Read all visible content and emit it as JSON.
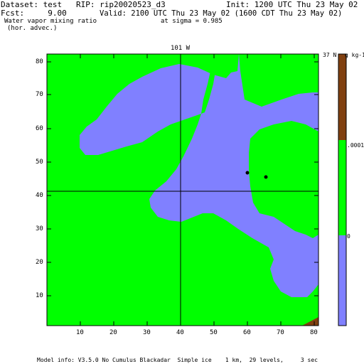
{
  "header": {
    "dataset_line": "Dataset: test   RIP: rip20020523_d3",
    "init_line": "Init: 1200 UTC Thu 23 May 02",
    "fcst_line": "Fcst:     9.00",
    "valid_line": "Valid: 2100 UTC Thu 23 May 02 (1600 CDT Thu 23 May 02)",
    "field_line": "Water vapor mixing ratio",
    "sigma_line": "at sigma = 0.985",
    "advec_line": "(hor. advec.)"
  },
  "map": {
    "top_label": "101 W",
    "corner_label": "37 N",
    "x_ticks": [
      "10",
      "20",
      "30",
      "40",
      "50",
      "60",
      "70",
      "80"
    ],
    "y_ticks": [
      "80",
      "70",
      "60",
      "50",
      "40",
      "30",
      "20",
      "10"
    ],
    "fill_colors": {
      "dry": "#8080ff",
      "moist": "#00ff00",
      "wettest": "#804010"
    },
    "markers": [
      "station-dot",
      "station-dot"
    ]
  },
  "colorbar": {
    "units": "g kg-1",
    "labels": [
      ".0001",
      "0"
    ],
    "segments": [
      {
        "color": "#804010",
        "level": "top"
      },
      {
        "color": "#00ff00",
        "level": "middle"
      },
      {
        "color": "#8080ff",
        "level": "bottom"
      }
    ]
  },
  "footer": {
    "model_info": "Model info: V3.5.0 No Cumulus Blackadar  Simple ice    1 km,  29 levels,     3 sec"
  }
}
